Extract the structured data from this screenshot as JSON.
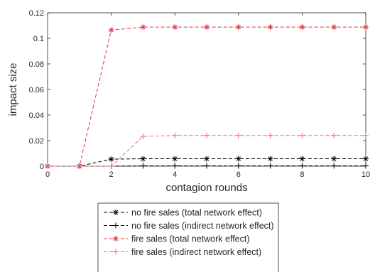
{
  "chart_data": {
    "type": "line",
    "xlabel": "contagion rounds",
    "ylabel": "impact size",
    "xlim": [
      0,
      10
    ],
    "ylim": [
      0,
      0.12
    ],
    "x_ticks": [
      "0",
      "2",
      "4",
      "6",
      "8",
      "10"
    ],
    "y_ticks": [
      "0",
      "0.02",
      "0.04",
      "0.06",
      "0.08",
      "0.1",
      "0.12"
    ],
    "grid": false,
    "legend_position": "below",
    "x": [
      0,
      1,
      2,
      3,
      4,
      5,
      6,
      7,
      8,
      9,
      10
    ],
    "series": [
      {
        "name": "no fire sales (total network effect)",
        "color": "#000000",
        "marker": "asterisk",
        "dash": "dashed",
        "values": [
          0,
          0,
          0.0055,
          0.0058,
          0.0058,
          0.0058,
          0.0058,
          0.0058,
          0.0058,
          0.0058,
          0.0058
        ]
      },
      {
        "name": "no fire sales (indirect network effect)",
        "color": "#000000",
        "marker": "plus",
        "dash": "dashed",
        "values": [
          0,
          0,
          0,
          0.0003,
          0.0003,
          0.0003,
          0.0003,
          0.0003,
          0.0003,
          0.0003,
          0.0003
        ]
      },
      {
        "name": "fire sales (total network effect)",
        "color": "#e8303a",
        "marker": "asterisk",
        "dash": "dashed",
        "values": [
          0,
          0,
          0.1065,
          0.1088,
          0.1088,
          0.1088,
          0.1088,
          0.1088,
          0.1088,
          0.1088,
          0.1088
        ]
      },
      {
        "name": "fire sales (indirect network effect)",
        "color": "#f06a72",
        "marker": "plus",
        "dash": "dashed",
        "values": [
          0,
          0,
          0,
          0.0233,
          0.024,
          0.024,
          0.024,
          0.024,
          0.024,
          0.024,
          0.024
        ]
      }
    ]
  }
}
